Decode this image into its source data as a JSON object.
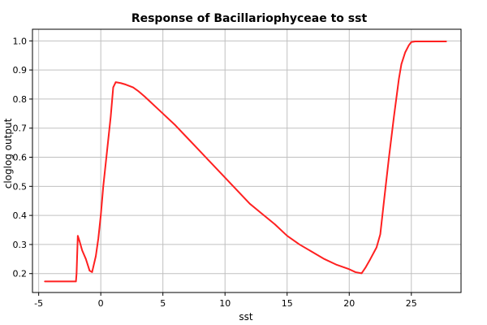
{
  "chart_data": {
    "type": "line",
    "title": "Response of Bacillariophyceae to sst",
    "xlabel": "sst",
    "ylabel": "cloglog output",
    "xlim": [
      -5.5,
      29
    ],
    "ylim": [
      0.135,
      1.04
    ],
    "xticks": [
      -5,
      0,
      5,
      10,
      15,
      20,
      25
    ],
    "yticks": [
      0.2,
      0.3,
      0.4,
      0.5,
      0.6,
      0.7,
      0.8,
      0.9,
      1.0
    ],
    "xtick_labels": [
      "-5",
      "0",
      "5",
      "10",
      "15",
      "20",
      "25"
    ],
    "ytick_labels": [
      "0.2",
      "0.3",
      "0.4",
      "0.5",
      "0.6",
      "0.7",
      "0.8",
      "0.9",
      "1.0"
    ],
    "grid": true,
    "series": [
      {
        "color": "#ff2020",
        "x": [
          -4.5,
          -2.0,
          -1.95,
          -1.85,
          -1.7,
          -1.5,
          -1.2,
          -0.9,
          -0.7,
          -0.4,
          -0.2,
          0.0,
          0.2,
          0.5,
          0.8,
          1.0,
          1.2,
          1.6,
          2.0,
          2.6,
          3.0,
          3.5,
          4.0,
          5.0,
          6.0,
          7.0,
          8.0,
          9.0,
          10.0,
          11.0,
          12.0,
          13.0,
          14.0,
          15.0,
          16.0,
          17.0,
          18.0,
          19.0,
          20.0,
          20.5,
          21.0,
          21.3,
          21.7,
          22.2,
          22.5,
          22.8,
          23.2,
          23.6,
          24.0,
          24.2,
          24.5,
          24.8,
          25.0,
          25.3,
          26.0,
          27.8
        ],
        "y": [
          0.173,
          0.173,
          0.2,
          0.33,
          0.31,
          0.28,
          0.25,
          0.21,
          0.205,
          0.26,
          0.32,
          0.4,
          0.5,
          0.62,
          0.74,
          0.84,
          0.858,
          0.855,
          0.85,
          0.84,
          0.828,
          0.81,
          0.79,
          0.75,
          0.71,
          0.665,
          0.62,
          0.575,
          0.53,
          0.485,
          0.44,
          0.405,
          0.37,
          0.33,
          0.3,
          0.275,
          0.25,
          0.23,
          0.215,
          0.205,
          0.201,
          0.22,
          0.25,
          0.29,
          0.335,
          0.45,
          0.6,
          0.74,
          0.87,
          0.92,
          0.96,
          0.985,
          0.996,
          0.998,
          0.998,
          0.998
        ]
      }
    ]
  }
}
